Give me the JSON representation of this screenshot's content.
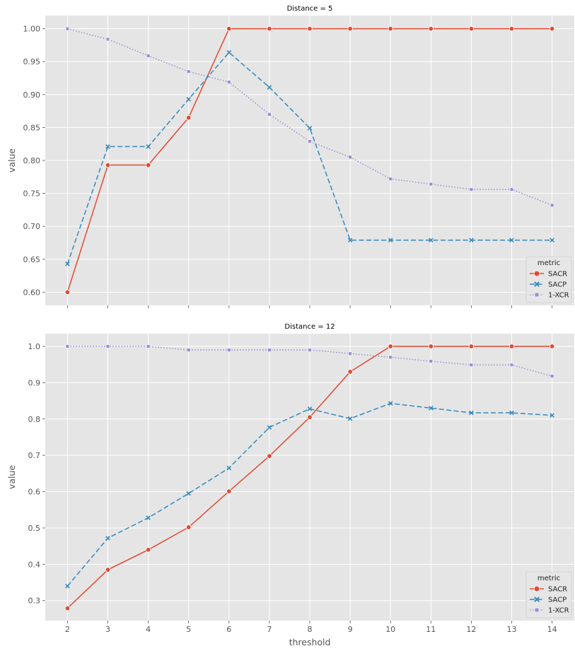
{
  "chart_data": [
    {
      "type": "line",
      "title": "Distance = 5",
      "xlabel": "",
      "ylabel": "value",
      "x": [
        2,
        3,
        4,
        5,
        6,
        7,
        8,
        9,
        10,
        11,
        12,
        13,
        14
      ],
      "xlim": [
        1.45,
        14.55
      ],
      "ylim": [
        0.58,
        1.02
      ],
      "yticks": [
        0.6,
        0.65,
        0.7,
        0.75,
        0.8,
        0.85,
        0.9,
        0.95,
        1.0
      ],
      "show_xtick_labels": false,
      "grid": true,
      "legend": {
        "title": "metric",
        "placement": "lower-right"
      },
      "series": [
        {
          "name": "SACR",
          "color": "#E24A33",
          "dash": "solid",
          "marker": "circle",
          "values": [
            0.6,
            0.793,
            0.793,
            0.865,
            1.0,
            1.0,
            1.0,
            1.0,
            1.0,
            1.0,
            1.0,
            1.0,
            1.0
          ]
        },
        {
          "name": "SACP",
          "color": "#348ABD",
          "dash": "dashed",
          "marker": "x",
          "values": [
            0.643,
            0.821,
            0.821,
            0.893,
            0.964,
            0.911,
            0.849,
            0.679,
            0.679,
            0.679,
            0.679,
            0.679,
            0.679
          ]
        },
        {
          "name": "1-XCR",
          "color": "#988ED5",
          "dash": "dotted",
          "marker": "square",
          "values": [
            1.0,
            0.984,
            0.959,
            0.935,
            0.919,
            0.87,
            0.829,
            0.805,
            0.772,
            0.764,
            0.756,
            0.756,
            0.732
          ]
        }
      ]
    },
    {
      "type": "line",
      "title": "Distance = 12",
      "xlabel": "threshold",
      "ylabel": "value",
      "x": [
        2,
        3,
        4,
        5,
        6,
        7,
        8,
        9,
        10,
        11,
        12,
        13,
        14
      ],
      "xlim": [
        1.45,
        14.55
      ],
      "ylim": [
        0.245,
        1.035
      ],
      "yticks": [
        0.3,
        0.4,
        0.5,
        0.6,
        0.7,
        0.8,
        0.9,
        1.0
      ],
      "show_xtick_labels": true,
      "grid": true,
      "legend": {
        "title": "metric",
        "placement": "lower-right"
      },
      "series": [
        {
          "name": "SACR",
          "color": "#E24A33",
          "dash": "solid",
          "marker": "circle",
          "values": [
            0.279,
            0.385,
            0.44,
            0.502,
            0.601,
            0.698,
            0.805,
            0.93,
            1.0,
            1.0,
            1.0,
            1.0,
            1.0
          ]
        },
        {
          "name": "SACP",
          "color": "#348ABD",
          "dash": "dashed",
          "marker": "x",
          "values": [
            0.34,
            0.472,
            0.528,
            0.595,
            0.665,
            0.777,
            0.828,
            0.801,
            0.843,
            0.83,
            0.817,
            0.817,
            0.81
          ]
        },
        {
          "name": "1-XCR",
          "color": "#988ED5",
          "dash": "dotted",
          "marker": "square",
          "values": [
            1.0,
            1.0,
            1.0,
            0.99,
            0.99,
            0.99,
            0.99,
            0.98,
            0.97,
            0.959,
            0.949,
            0.949,
            0.918
          ]
        }
      ]
    }
  ]
}
